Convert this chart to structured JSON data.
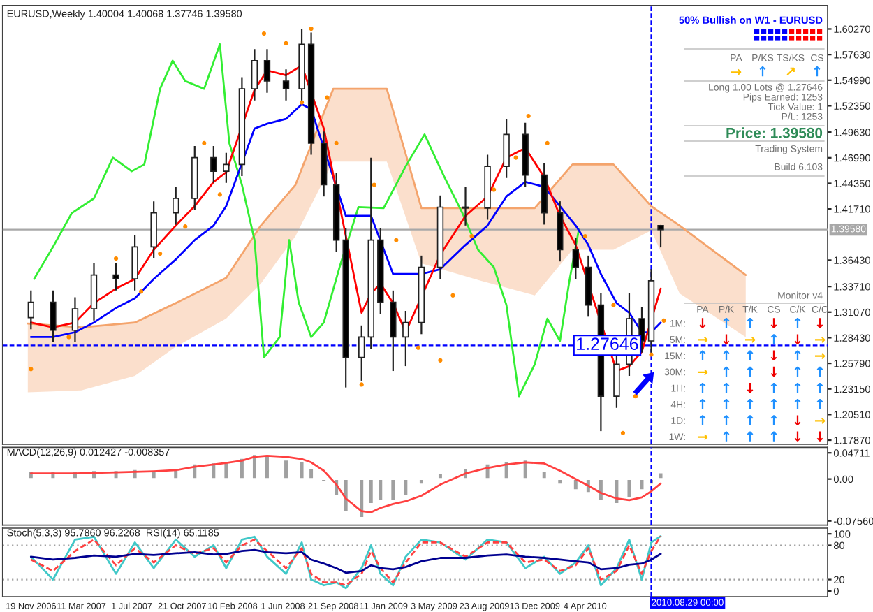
{
  "chart_data": [
    {
      "type": "candlestick",
      "title": "EURUSD,Weekly 1.40004 1.40068 1.37746 1.39580",
      "x": [
        "2006-11-19",
        "2007-01-07",
        "2007-02-25",
        "2007-04-08",
        "2007-05-27",
        "2007-07-08",
        "2007-08-19",
        "2007-10-07",
        "2007-11-18",
        "2007-12-30",
        "2008-01-27",
        "2008-03-02",
        "2008-03-30",
        "2008-04-27",
        "2008-06-08",
        "2008-07-13",
        "2008-08-03",
        "2008-08-31",
        "2008-09-28",
        "2008-10-19",
        "2008-11-23",
        "2008-12-14",
        "2009-01-04",
        "2009-02-01",
        "2009-03-01",
        "2009-04-05",
        "2009-05-17",
        "2009-07-12",
        "2009-08-30",
        "2009-10-11",
        "2009-11-22",
        "2010-01-03",
        "2010-02-07",
        "2010-03-14",
        "2010-04-11",
        "2010-05-09",
        "2010-06-13",
        "2010-07-11",
        "2010-08-08",
        "2010-08-29",
        "2010-09-19"
      ],
      "ohlc": [
        [
          1.305,
          1.333,
          1.293,
          1.321
        ],
        [
          1.321,
          1.333,
          1.28,
          1.292
        ],
        [
          1.292,
          1.326,
          1.28,
          1.314
        ],
        [
          1.314,
          1.361,
          1.302,
          1.349
        ],
        [
          1.349,
          1.361,
          1.333,
          1.345
        ],
        [
          1.345,
          1.39,
          1.333,
          1.378
        ],
        [
          1.378,
          1.425,
          1.366,
          1.413
        ],
        [
          1.413,
          1.44,
          1.401,
          1.428
        ],
        [
          1.428,
          1.482,
          1.416,
          1.47
        ],
        [
          1.47,
          1.482,
          1.444,
          1.456
        ],
        [
          1.456,
          1.475,
          1.444,
          1.463
        ],
        [
          1.463,
          1.553,
          1.451,
          1.541
        ],
        [
          1.541,
          1.582,
          1.529,
          1.57
        ],
        [
          1.57,
          1.582,
          1.537,
          1.549
        ],
        [
          1.549,
          1.561,
          1.529,
          1.541
        ],
        [
          1.541,
          1.603,
          1.529,
          1.587
        ],
        [
          1.587,
          1.599,
          1.473,
          1.485
        ],
        [
          1.485,
          1.497,
          1.43,
          1.442
        ],
        [
          1.442,
          1.454,
          1.373,
          1.385
        ],
        [
          1.385,
          1.397,
          1.233,
          1.264
        ],
        [
          1.264,
          1.297,
          1.24,
          1.285
        ],
        [
          1.285,
          1.47,
          1.273,
          1.385
        ],
        [
          1.385,
          1.397,
          1.309,
          1.321
        ],
        [
          1.321,
          1.333,
          1.25,
          1.285
        ],
        [
          1.285,
          1.312,
          1.255,
          1.3
        ],
        [
          1.3,
          1.369,
          1.288,
          1.357
        ],
        [
          1.357,
          1.431,
          1.345,
          1.419
        ],
        [
          1.419,
          1.44,
          1.4,
          1.418
        ],
        [
          1.418,
          1.473,
          1.406,
          1.461
        ],
        [
          1.461,
          1.51,
          1.449,
          1.494
        ],
        [
          1.494,
          1.506,
          1.44,
          1.452
        ],
        [
          1.452,
          1.464,
          1.401,
          1.413
        ],
        [
          1.413,
          1.425,
          1.363,
          1.375
        ],
        [
          1.375,
          1.387,
          1.345,
          1.357
        ],
        [
          1.357,
          1.369,
          1.306,
          1.318
        ],
        [
          1.318,
          1.33,
          1.188,
          1.224
        ],
        [
          1.224,
          1.269,
          1.212,
          1.257
        ],
        [
          1.257,
          1.33,
          1.245,
          1.304
        ],
        [
          1.304,
          1.316,
          1.269,
          1.281
        ],
        [
          1.281,
          1.355,
          1.269,
          1.343
        ],
        [
          1.40004,
          1.40068,
          1.37746,
          1.3958
        ]
      ],
      "series": [
        {
          "type": "line",
          "color": "#f4a46c",
          "x": [
            "2006-11-12",
            "2007-03-11",
            "2007-07-08",
            "2007-10-07",
            "2008-01-27",
            "2008-04-13",
            "2008-06-29",
            "2008-09-21",
            "2009-01-18",
            "2009-04-05",
            "2009-08-16",
            "2009-12-13",
            "2010-03-07",
            "2010-06-06",
            "2010-08-29",
            "2010-10-31",
            "2011-03-27"
          ],
          "values": [
            1.299,
            1.295,
            1.3,
            1.32,
            1.346,
            1.4,
            1.442,
            1.541,
            1.541,
            1.418,
            1.418,
            1.418,
            1.463,
            1.463,
            1.42,
            1.4,
            1.349
          ],
          "upper": [
            1.299,
            1.295,
            1.3,
            1.32,
            1.346,
            1.4,
            1.442,
            1.541,
            1.541,
            1.418,
            1.418,
            1.418,
            1.463,
            1.463,
            1.42,
            1.4,
            1.349
          ],
          "lower": [
            1.228,
            1.23,
            1.245,
            1.275,
            1.304,
            1.34,
            1.389,
            1.466,
            1.466,
            1.361,
            1.343,
            1.328,
            1.375,
            1.375,
            1.395,
            1.33,
            1.285
          ]
        },
        {
          "type": "line",
          "color": "#33ee33",
          "x": [
            "2006-11-26",
            "2007-01-07",
            "2007-02-18",
            "2007-04-08",
            "2007-05-20",
            "2007-07-01",
            "2007-07-29",
            "2007-09-02",
            "2007-09-30",
            "2007-10-28",
            "2007-12-09",
            "2008-01-13",
            "2008-02-03",
            "2008-03-02",
            "2008-03-30",
            "2008-04-20",
            "2008-05-25",
            "2008-06-15",
            "2008-07-06",
            "2008-08-03",
            "2008-08-31",
            "2008-10-05",
            "2008-11-16",
            "2009-01-11",
            "2009-03-01",
            "2009-04-12",
            "2009-05-24",
            "2009-07-05",
            "2009-08-09",
            "2009-09-13",
            "2009-10-11",
            "2009-11-08",
            "2009-12-13",
            "2010-01-10",
            "2010-02-07",
            "2010-02-28",
            "2010-03-21"
          ],
          "values": [
            1.345,
            1.378,
            1.413,
            1.428,
            1.47,
            1.456,
            1.463,
            1.541,
            1.57,
            1.549,
            1.541,
            1.587,
            1.485,
            1.442,
            1.385,
            1.264,
            1.285,
            1.385,
            1.321,
            1.285,
            1.3,
            1.357,
            1.419,
            1.418,
            1.461,
            1.494,
            1.452,
            1.413,
            1.375,
            1.357,
            1.318,
            1.224,
            1.257,
            1.304,
            1.281,
            1.343,
            1.396
          ]
        },
        {
          "type": "line",
          "color": "#0000ff",
          "values": [
            1.285,
            1.285,
            1.29,
            1.3,
            1.315,
            1.325,
            1.345,
            1.365,
            1.385,
            1.4,
            1.42,
            null,
            1.5,
            1.505,
            1.51,
            1.525,
            1.52,
            null,
            null,
            1.41,
            1.41,
            1.41,
            null,
            1.35,
            1.35,
            1.35,
            1.355,
            1.38,
            1.4,
            1.43,
            1.445,
            1.44,
            1.42,
            1.4,
            1.38,
            1.35,
            1.32,
            1.31,
            1.29,
            1.29,
            1.3
          ]
        },
        {
          "type": "line",
          "color": "#ff0000",
          "values": [
            1.3,
            1.295,
            1.3,
            1.32,
            1.335,
            1.345,
            1.375,
            1.4,
            1.42,
            1.445,
            1.455,
            null,
            1.54,
            1.56,
            1.555,
            1.565,
            null,
            1.5,
            null,
            null,
            1.31,
            1.33,
            1.34,
            1.32,
            1.29,
            null,
            1.37,
            1.41,
            1.43,
            1.47,
            1.48,
            1.45,
            1.41,
            1.38,
            null,
            null,
            1.25,
            1.255,
            1.27,
            null,
            1.335
          ]
        },
        {
          "type": "scatter",
          "color": "#ff8c00",
          "marker": "circle",
          "x": [
            "2006-11-19",
            "2007-02-11",
            "2007-04-08",
            "2007-05-27",
            "2007-07-22",
            "2007-09-02",
            "2007-10-28",
            "2007-12-09",
            "2008-01-13",
            "2008-03-02",
            "2008-04-20",
            "2008-06-08",
            "2008-07-13",
            "2008-08-03",
            "2008-09-07",
            "2008-09-28",
            "2008-11-23",
            "2008-12-21",
            "2009-02-08",
            "2009-03-29",
            "2009-05-17",
            "2009-06-14",
            "2009-07-26",
            "2009-09-13",
            "2009-11-01",
            "2009-11-29",
            "2010-01-10",
            "2010-04-04",
            "2010-06-06",
            "2010-06-27",
            "2010-07-25",
            "2010-08-29",
            "2010-09-26"
          ],
          "values": [
            1.252,
            1.285,
            null,
            1.366,
            1.332,
            1.371,
            1.399,
            1.485,
            1.432,
            null,
            1.598,
            1.588,
            1.527,
            1.603,
            1.532,
            1.485,
            1.236,
            1.442,
            1.385,
            1.274,
            1.261,
            1.328,
            1.389,
            1.437,
            1.47,
            1.513,
            1.485,
            1.389,
            1.318,
            1.186,
            1.224,
            1.267,
            1.302
          ]
        }
      ],
      "xlim": [
        "2006-09-17",
        "2011-09-25"
      ],
      "ylim": [
        1.1744,
        1.6269
      ],
      "yticks": [
        {
          "value": 1.6027,
          "label": "1.60270"
        },
        {
          "value": 1.5763,
          "label": "1.57630"
        },
        {
          "value": 1.5499,
          "label": "1.54990"
        },
        {
          "value": 1.5235,
          "label": "1.52350"
        },
        {
          "value": 1.4963,
          "label": "1.49630"
        },
        {
          "value": 1.4699,
          "label": "1.46990"
        },
        {
          "value": 1.4435,
          "label": "1.44350"
        },
        {
          "value": 1.4171,
          "label": "1.41710"
        },
        {
          "value": 1.3643,
          "label": "1.36430"
        },
        {
          "value": 1.3371,
          "label": "1.33710"
        },
        {
          "value": 1.3107,
          "label": "1.31070"
        },
        {
          "value": 1.2843,
          "label": "1.28430"
        },
        {
          "value": 1.2579,
          "label": "1.25790"
        },
        {
          "value": 1.2315,
          "label": "1.23150"
        },
        {
          "value": 1.2051,
          "label": "1.20510"
        },
        {
          "value": 1.1787,
          "label": "1.17870"
        }
      ],
      "ref_lines": [
        {
          "axis": "y",
          "value": 1.3958,
          "label": "1.39580",
          "color": "#a8a8a8",
          "line_style": "solid"
        },
        {
          "axis": "y",
          "value": 1.27646,
          "color": "#0000ff",
          "line_style": "dashed"
        },
        {
          "axis": "x",
          "value": "2010-08-29",
          "color": "#0000ff",
          "line_style": "dashed"
        }
      ],
      "annotations": [
        {
          "text": "1.27646",
          "x": "2010-05-23",
          "y": 1.27646
        }
      ],
      "tick_labels": "y"
    },
    {
      "type": "bar",
      "title": "MACD(12,26,9) 0.012427 -0.008357",
      "x": [
        "2006-11-19",
        "2007-01-07",
        "2007-02-25",
        "2007-04-08",
        "2007-05-27",
        "2007-07-08",
        "2007-08-19",
        "2007-10-07",
        "2007-11-18",
        "2007-12-30",
        "2008-01-27",
        "2008-03-02",
        "2008-03-30",
        "2008-04-27",
        "2008-06-08",
        "2008-07-13",
        "2008-08-03",
        "2008-08-31",
        "2008-09-28",
        "2008-10-19",
        "2008-11-23",
        "2008-12-14",
        "2009-01-04",
        "2009-02-01",
        "2009-03-01",
        "2009-04-05",
        "2009-05-17",
        "2009-07-12",
        "2009-08-30",
        "2009-10-11",
        "2009-11-22",
        "2010-01-03",
        "2010-02-07",
        "2010-03-14",
        "2010-04-11",
        "2010-05-09",
        "2010-06-13",
        "2010-07-11",
        "2010-08-08",
        "2010-08-29",
        "2010-09-19"
      ],
      "series": [
        {
          "type": "bar",
          "color": "#a0a0a0",
          "values": [
            0.015,
            0.014,
            0.015,
            0.016,
            0.016,
            0.018,
            0.016,
            0.02,
            0.028,
            0.03,
            0.03,
            0.038,
            0.045,
            0.042,
            0.035,
            0.032,
            0.02,
            -0.005,
            -0.03,
            -0.06,
            -0.07,
            -0.045,
            -0.04,
            -0.04,
            -0.03,
            -0.01,
            0.01,
            0.02,
            0.028,
            0.032,
            0.035,
            0.015,
            -0.01,
            -0.02,
            -0.025,
            -0.04,
            -0.045,
            -0.035,
            -0.02,
            -0.01,
            0.012
          ]
        },
        {
          "type": "line",
          "color": "#ff4040",
          "values": [
            0.01,
            0.01,
            0.01,
            0.011,
            0.012,
            0.013,
            0.014,
            0.016,
            0.022,
            0.026,
            0.029,
            0.033,
            0.04,
            0.042,
            0.04,
            0.036,
            0.03,
            0.015,
            -0.01,
            -0.035,
            -0.058,
            -0.06,
            -0.052,
            -0.045,
            -0.04,
            -0.03,
            -0.01,
            0.01,
            0.02,
            0.026,
            0.03,
            0.028,
            0.015,
            0.0,
            -0.012,
            -0.025,
            -0.035,
            -0.038,
            -0.033,
            -0.022,
            -0.008
          ]
        }
      ],
      "xlim": [
        "2006-09-17",
        "2011-09-25"
      ],
      "ylim": [
        -0.083,
        0.057
      ],
      "yticks": [
        {
          "value": 0.04711,
          "label": "0.04711"
        },
        {
          "value": 0,
          "label": "0.00"
        },
        {
          "value": -0.0756,
          "label": "-0.07560"
        }
      ],
      "ref_lines": [
        {
          "axis": "x",
          "value": "2010-08-29",
          "color": "#0000ff",
          "line_style": "dashed"
        }
      ],
      "tick_labels": "y"
    },
    {
      "type": "line",
      "title": "Stoch(5,3,3) 95.7860 96.2268  RSI(14) 65.1185",
      "x": [
        "2006-11-19",
        "2007-01-07",
        "2007-02-25",
        "2007-04-08",
        "2007-05-27",
        "2007-07-08",
        "2007-08-19",
        "2007-10-07",
        "2007-11-18",
        "2007-12-30",
        "2008-01-27",
        "2008-03-02",
        "2008-03-30",
        "2008-04-27",
        "2008-06-08",
        "2008-07-13",
        "2008-08-03",
        "2008-08-31",
        "2008-09-28",
        "2008-10-19",
        "2008-11-23",
        "2008-12-14",
        "2009-01-04",
        "2009-02-01",
        "2009-03-01",
        "2009-04-05",
        "2009-05-17",
        "2009-07-12",
        "2009-08-30",
        "2009-10-11",
        "2009-11-22",
        "2010-01-03",
        "2010-02-07",
        "2010-03-14",
        "2010-04-11",
        "2010-05-09",
        "2010-06-13",
        "2010-07-11",
        "2010-08-08",
        "2010-08-29",
        "2010-09-19"
      ],
      "series": [
        {
          "color": "#40c8c8",
          "line_style": "solid",
          "values": [
            60,
            20,
            90,
            95,
            30,
            85,
            40,
            90,
            60,
            80,
            40,
            90,
            95,
            60,
            30,
            85,
            20,
            10,
            15,
            5,
            40,
            80,
            30,
            10,
            60,
            90,
            85,
            55,
            90,
            85,
            40,
            60,
            30,
            50,
            80,
            10,
            40,
            90,
            20,
            85,
            96
          ]
        },
        {
          "color": "#ff4040",
          "line_style": "dashed",
          "values": [
            55,
            35,
            70,
            90,
            45,
            75,
            50,
            80,
            65,
            75,
            50,
            80,
            90,
            70,
            40,
            75,
            30,
            15,
            15,
            10,
            30,
            70,
            40,
            15,
            50,
            85,
            85,
            60,
            85,
            85,
            50,
            55,
            35,
            45,
            75,
            20,
            35,
            80,
            30,
            70,
            96
          ]
        },
        {
          "color": "#000090",
          "line_style": "solid",
          "values": [
            60,
            55,
            58,
            62,
            60,
            65,
            63,
            66,
            68,
            64,
            65,
            70,
            72,
            68,
            66,
            68,
            55,
            48,
            40,
            32,
            35,
            45,
            40,
            38,
            42,
            52,
            58,
            58,
            62,
            64,
            60,
            58,
            55,
            52,
            50,
            38,
            40,
            46,
            48,
            55,
            65
          ]
        }
      ],
      "xlim": [
        "2006-09-17",
        "2011-09-25"
      ],
      "ylim": [
        -10,
        110
      ],
      "yticks": [
        100,
        80,
        20,
        0
      ],
      "xticks": [
        {
          "value": "2006-11-19",
          "label": "19 Nov 2006"
        },
        {
          "value": "2007-03-11",
          "label": "11 Mar 2007"
        },
        {
          "value": "2007-07-01",
          "label": "1 Jul 2007"
        },
        {
          "value": "2007-10-21",
          "label": "21 Oct 2007"
        },
        {
          "value": "2008-02-10",
          "label": "10 Feb 2008"
        },
        {
          "value": "2008-06-01",
          "label": "1 Jun 2008"
        },
        {
          "value": "2008-09-21",
          "label": "21 Sep 2008"
        },
        {
          "value": "2009-01-11",
          "label": "11 Jan 2009"
        },
        {
          "value": "2009-05-03",
          "label": "3 May 2009"
        },
        {
          "value": "2009-08-23",
          "label": "23 Aug 2009"
        },
        {
          "value": "2009-12-13",
          "label": "13 Dec 2009"
        },
        {
          "value": "2010-04-04",
          "label": "4 Apr 2010"
        }
      ],
      "ref_lines": [
        {
          "axis": "y",
          "value": 80,
          "color": "#a0a0a0",
          "line_style": "dotted"
        },
        {
          "axis": "y",
          "value": 20,
          "color": "#a0a0a0",
          "line_style": "dotted"
        },
        {
          "axis": "x",
          "value": "2010-08-29",
          "label": "2010.08.29 00:00",
          "color": "#0000ff",
          "line_style": "dashed"
        }
      ]
    },
    {
      "type": "other",
      "annotations": [
        "50% Bullish on W1 - EURUSD",
        "PA",
        "P/KS",
        "TS/KS",
        "CS",
        "→↑↗↑",
        "Long 1.00 Lots @ 1.27646",
        "Pips Earned: 1253",
        "Tick Value: 1",
        "P/L: 1253",
        "Price: 1.39580",
        "Trading System",
        "Build 6.103",
        "Monitor v4",
        "PA",
        "P/K",
        "T/K",
        "CS",
        "C/K",
        "C/C",
        "1M:",
        "↓↑↑↓↑↓",
        "5M:",
        "→↓→↑↓→",
        "15M:",
        "↑↑↑↓↑→",
        "30M:",
        "→↑↑↓↑↑",
        "1H:",
        "↑↑↓↑↑↑",
        "4H:",
        "↑↑↑↑↑↑",
        "1D:",
        "↑↑↑↑↓→",
        "1W:",
        "→↑↑↑↓↓"
      ]
    }
  ]
}
